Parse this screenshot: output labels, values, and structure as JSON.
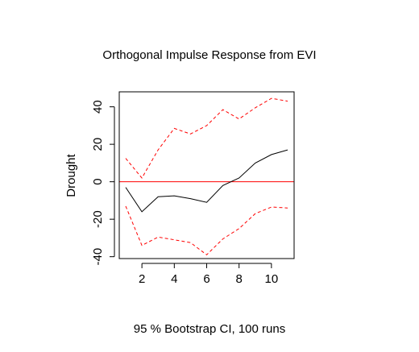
{
  "chart_data": {
    "type": "line",
    "title": "Orthogonal Impulse Response from EVI",
    "subtitle": "95 % Bootstrap CI,  100 runs",
    "xlabel": "",
    "ylabel": "Drought",
    "xlim": [
      0.6,
      11.4
    ],
    "ylim": [
      -41,
      48
    ],
    "x_ticks": [
      2,
      4,
      6,
      8,
      10
    ],
    "y_ticks": [
      -40,
      -20,
      0,
      20,
      40
    ],
    "zero_line": 0,
    "x": [
      1,
      2,
      3,
      4,
      5,
      6,
      7,
      8,
      9,
      10,
      11
    ],
    "series": [
      {
        "name": "",
        "role": "estimate",
        "color": "#000000",
        "style": "solid",
        "values": [
          -3,
          -16,
          -8,
          -7.5,
          -9,
          -11,
          -2,
          2,
          10,
          14.5,
          17
        ]
      },
      {
        "name": "",
        "role": "upper",
        "color": "#ff0000",
        "style": "dashed",
        "values": [
          12.5,
          2,
          17,
          28.5,
          25.5,
          30,
          38.5,
          33.5,
          39.5,
          44.5,
          43
        ]
      },
      {
        "name": "",
        "role": "lower",
        "color": "#ff0000",
        "style": "dashed",
        "values": [
          -13,
          -34,
          -29.5,
          -31,
          -32.5,
          -39,
          -30.5,
          -25,
          -17,
          -13.5,
          -14
        ]
      }
    ]
  }
}
